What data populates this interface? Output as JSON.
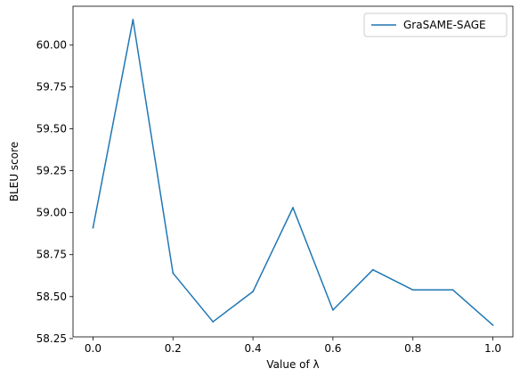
{
  "chart_data": {
    "type": "line",
    "xlabel": "Value of λ",
    "ylabel": "BLEU score",
    "xlim": [
      -0.05,
      1.05
    ],
    "ylim": [
      58.26,
      60.23
    ],
    "x_ticks": [
      0.0,
      0.2,
      0.4,
      0.6,
      0.8,
      1.0
    ],
    "x_tick_labels": [
      "0.0",
      "0.2",
      "0.4",
      "0.6",
      "0.8",
      "1.0"
    ],
    "y_ticks": [
      58.25,
      58.5,
      58.75,
      59.0,
      59.25,
      59.5,
      59.75,
      60.0
    ],
    "y_tick_labels": [
      "58.25",
      "58.50",
      "58.75",
      "59.00",
      "59.25",
      "59.50",
      "59.75",
      "60.00"
    ],
    "grid": false,
    "legend_position": "top-right",
    "series": [
      {
        "name": "GraSAME-SAGE",
        "color": "#1f77b4",
        "x": [
          0.0,
          0.1,
          0.2,
          0.3,
          0.4,
          0.5,
          0.6,
          0.7,
          0.8,
          0.9,
          1.0
        ],
        "y": [
          58.91,
          60.15,
          58.64,
          58.35,
          58.53,
          59.03,
          58.42,
          58.66,
          58.54,
          58.54,
          58.33
        ]
      }
    ]
  }
}
